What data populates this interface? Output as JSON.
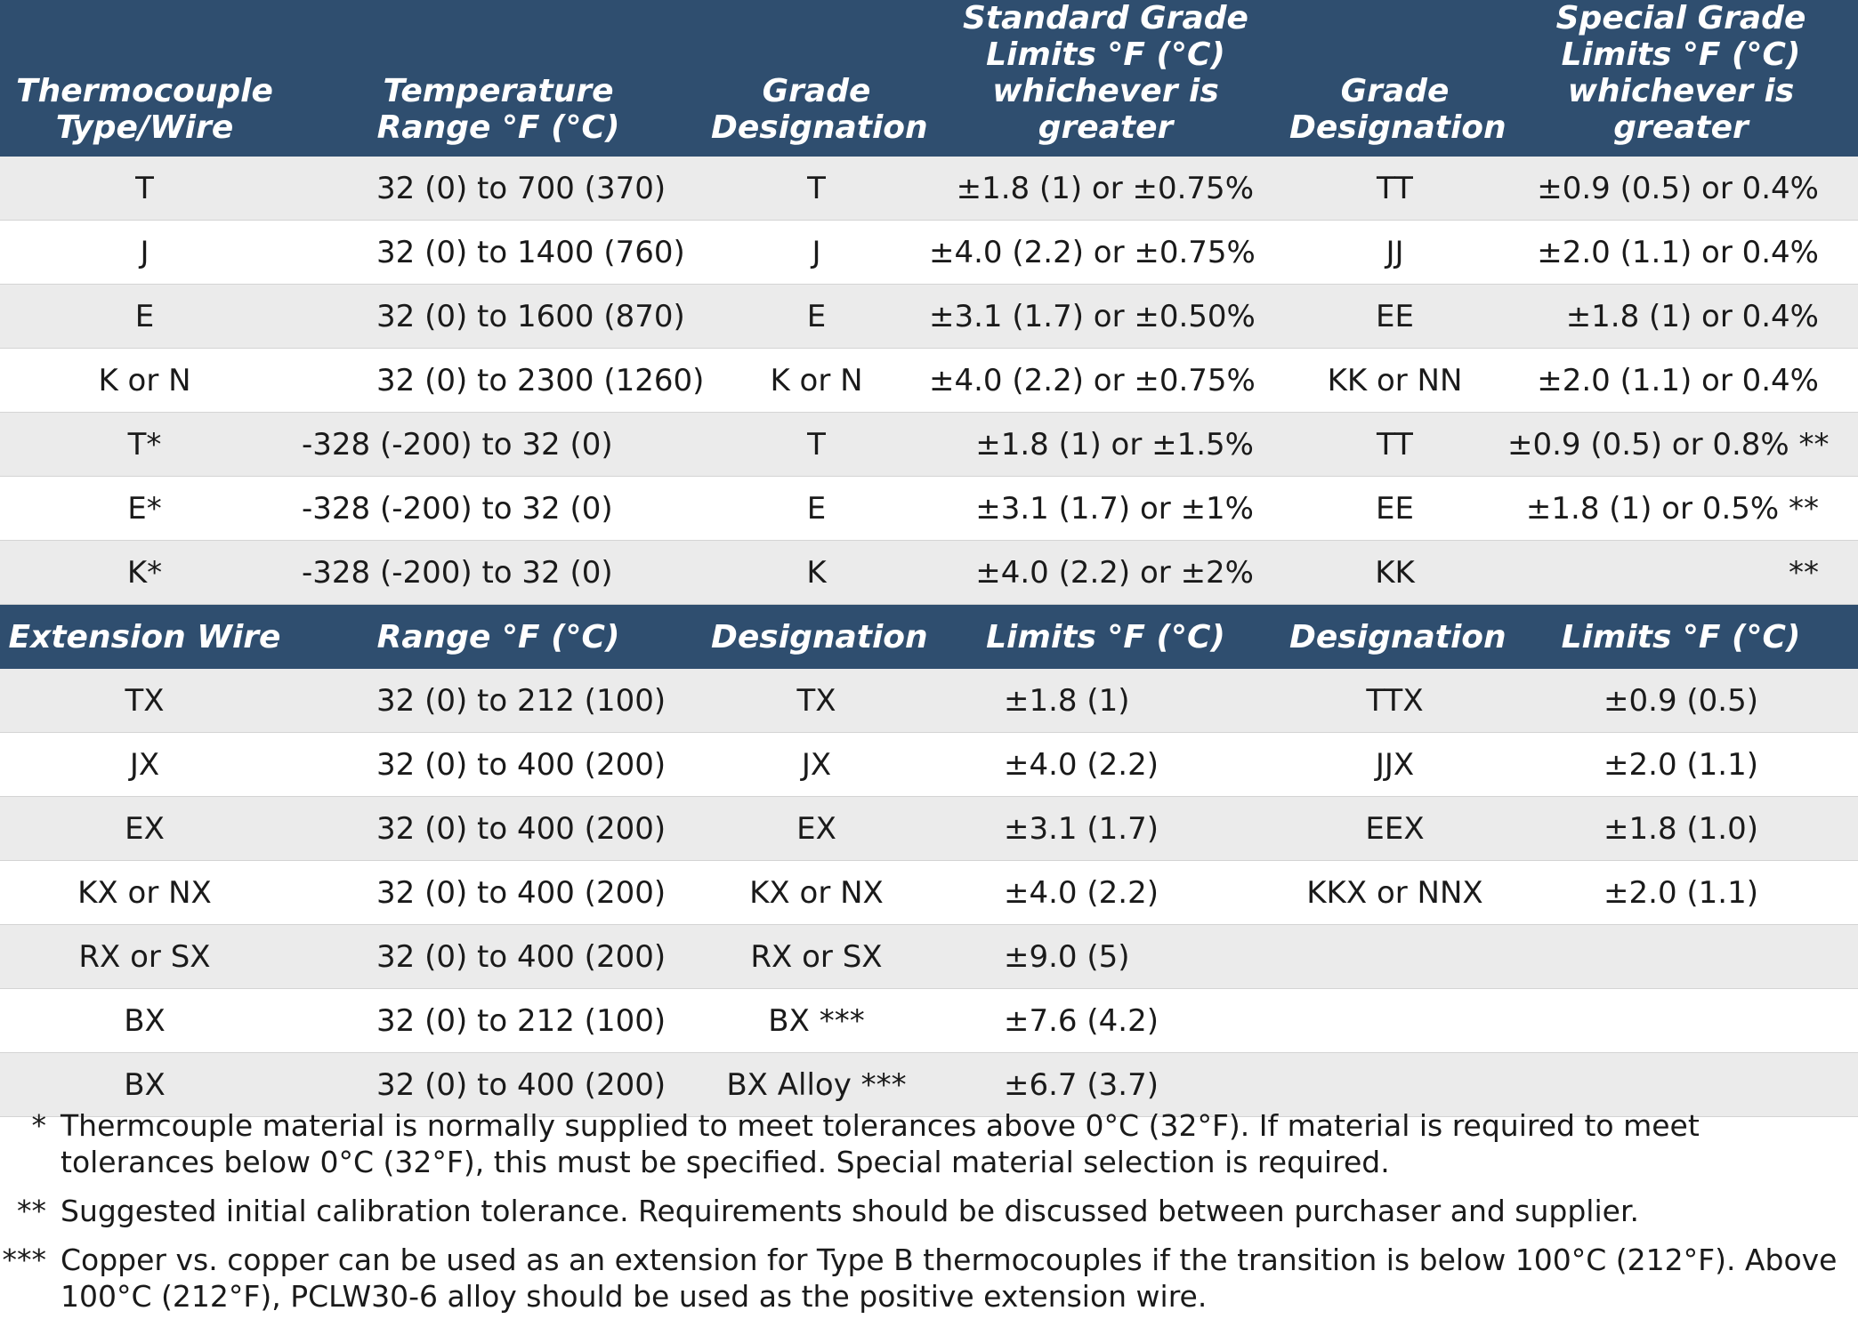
{
  "headers": {
    "col1": [
      "Thermocouple",
      "Type/Wire"
    ],
    "col2": [
      "Temperature",
      "Range °F (°C)"
    ],
    "col3": [
      "Grade",
      "Designation"
    ],
    "col4": [
      "Standard Grade",
      "Limits °F (°C)",
      "whichever is greater"
    ],
    "col5": [
      "Grade",
      "Designation"
    ],
    "col6": [
      "Special Grade",
      "Limits °F (°C)",
      "whichever is greater"
    ]
  },
  "thermocouple_rows": [
    [
      "T",
      "32 (0) to 700 (370)",
      "T",
      "±1.8 (1) or ±0.75%",
      "TT",
      "±0.9 (0.5) or 0.4%"
    ],
    [
      "J",
      "32 (0) to 1400 (760)",
      "J",
      "±4.0 (2.2) or ±0.75%",
      "JJ",
      "±2.0 (1.1) or 0.4%"
    ],
    [
      "E",
      "32 (0) to 1600 (870)",
      "E",
      "±3.1 (1.7) or ±0.50%",
      "EE",
      "±1.8 (1) or 0.4%"
    ],
    [
      "K or N",
      "32 (0) to 2300 (1260)",
      "K or N",
      "±4.0 (2.2) or ±0.75%",
      "KK or NN",
      "±2.0 (1.1) or 0.4%"
    ],
    [
      "T*",
      "-328 (-200) to 32 (0)",
      "T",
      "±1.8 (1) or ±1.5%",
      "TT",
      "±0.9 (0.5) or 0.8% **"
    ],
    [
      "E*",
      "-328 (-200) to 32 (0)",
      "E",
      "±3.1 (1.7) or ±1%",
      "EE",
      "±1.8 (1) or 0.5% **"
    ],
    [
      "K*",
      "-328 (-200) to 32 (0)",
      "K",
      "±4.0 (2.2) or ±2%",
      "KK",
      "**"
    ]
  ],
  "extension_headers": {
    "col1": "Extension Wire",
    "col2": "Range °F (°C)",
    "col3": "Designation",
    "col4": "Limits °F (°C)",
    "col5": "Designation",
    "col6": "Limits °F (°C)"
  },
  "extension_rows": [
    [
      "TX",
      "32 (0) to 212 (100)",
      "TX",
      "±1.8 (1)",
      "TTX",
      "±0.9 (0.5)"
    ],
    [
      "JX",
      "32 (0) to 400 (200)",
      "JX",
      "±4.0 (2.2)",
      "JJX",
      "±2.0 (1.1)"
    ],
    [
      "EX",
      "32 (0) to 400 (200)",
      "EX",
      "±3.1 (1.7)",
      "EEX",
      "±1.8 (1.0)"
    ],
    [
      "KX or NX",
      "32 (0) to 400 (200)",
      "KX or NX",
      "±4.0 (2.2)",
      "KKX or NNX",
      "±2.0 (1.1)"
    ],
    [
      "RX or SX",
      "32 (0) to 400 (200)",
      "RX or SX",
      "±9.0 (5)",
      "",
      ""
    ],
    [
      "BX",
      "32 (0) to 212 (100)",
      "BX ***",
      "±7.6 (4.2)",
      "",
      ""
    ],
    [
      "BX",
      "32 (0) to 400 (200)",
      "BX Alloy ***",
      "±6.7 (3.7)",
      "",
      ""
    ]
  ],
  "notes": [
    {
      "marker": "*",
      "text": "Thermcouple material is normally supplied to meet tolerances above 0°C (32°F). If material is required to meet tolerances below 0°C (32°F), this must be specified. Special material selection is required."
    },
    {
      "marker": "**",
      "text": "Suggested initial calibration tolerance. Requirements should be discussed between purchaser and supplier."
    },
    {
      "marker": "***",
      "text": "Copper vs. copper can be used as an extension for Type B thermocouples if the transition is below 100°C (212°F). Above 100°C (212°F), PCLW30-6 alloy should be used as the positive extension wire."
    }
  ]
}
